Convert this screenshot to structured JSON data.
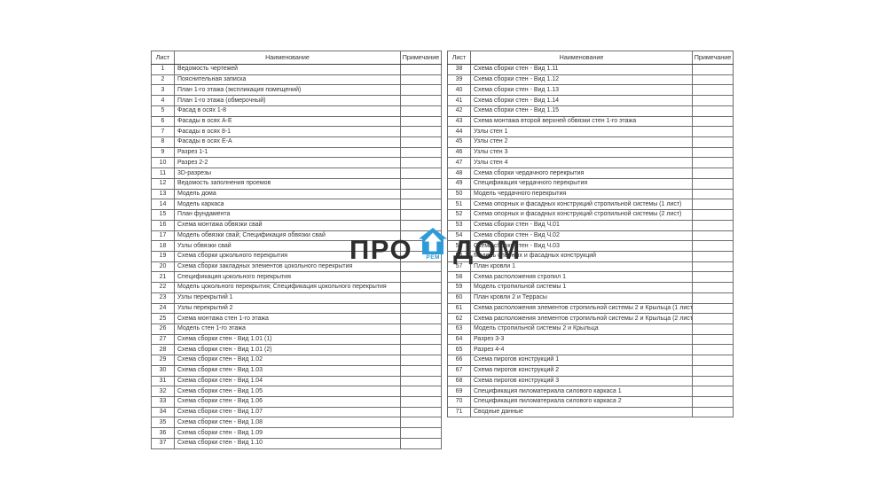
{
  "watermark": {
    "text_left": "ПРО",
    "text_right": "ДОМ",
    "sub_text": "РЕМ",
    "house_color": "#2f9ad8",
    "text_color": "#2e2e2e"
  },
  "tables": [
    {
      "headers": {
        "sheet": "Лист",
        "name": "Наименование",
        "note": "Примечание"
      },
      "rows": [
        {
          "sheet": "1",
          "name": "Ведомость чертежей",
          "note": ""
        },
        {
          "sheet": "2",
          "name": "Пояснительная записка",
          "note": ""
        },
        {
          "sheet": "3",
          "name": "План 1-го этажа (экспликация помещений)",
          "note": ""
        },
        {
          "sheet": "4",
          "name": "План 1-го этажа (обмерочный)",
          "note": ""
        },
        {
          "sheet": "5",
          "name": "Фасад в осях 1-8",
          "note": ""
        },
        {
          "sheet": "6",
          "name": "Фасады в осях А-Е",
          "note": ""
        },
        {
          "sheet": "7",
          "name": "Фасады в осях 8-1",
          "note": ""
        },
        {
          "sheet": "8",
          "name": "Фасады в осях Е-А",
          "note": ""
        },
        {
          "sheet": "9",
          "name": "Разрез 1-1",
          "note": ""
        },
        {
          "sheet": "10",
          "name": "Разрез 2-2",
          "note": ""
        },
        {
          "sheet": "11",
          "name": "3D-разрезы",
          "note": ""
        },
        {
          "sheet": "12",
          "name": "Ведомость заполнения проемов",
          "note": ""
        },
        {
          "sheet": "13",
          "name": "Модель дома",
          "note": ""
        },
        {
          "sheet": "14",
          "name": "Модель каркаса",
          "note": ""
        },
        {
          "sheet": "15",
          "name": "План фундамента",
          "note": ""
        },
        {
          "sheet": "16",
          "name": "Схема монтажа обвязки свай",
          "note": ""
        },
        {
          "sheet": "17",
          "name": "Модель обвязки свай; Спецификация обвязки свай",
          "note": ""
        },
        {
          "sheet": "18",
          "name": "Узлы обвязки свай",
          "note": ""
        },
        {
          "sheet": "19",
          "name": "Схема сборки цокольного перекрытия",
          "note": ""
        },
        {
          "sheet": "20",
          "name": "Схема сборки закладных элементов цокольного перекрытия",
          "note": ""
        },
        {
          "sheet": "21",
          "name": "Спецификация цокольного перекрытия",
          "note": ""
        },
        {
          "sheet": "22",
          "name": "Модель цокольного перекрытия; Спецификация цокольного перекрытия",
          "note": ""
        },
        {
          "sheet": "23",
          "name": "Узлы перекрытий 1",
          "note": ""
        },
        {
          "sheet": "24",
          "name": "Узлы  перекрытий 2",
          "note": ""
        },
        {
          "sheet": "25",
          "name": "Схема монтажа стен 1-го этажа",
          "note": ""
        },
        {
          "sheet": "26",
          "name": "Модель стен 1-го этажа",
          "note": ""
        },
        {
          "sheet": "27",
          "name": "Схема сборки стен - Вид 1.01 (1)",
          "note": ""
        },
        {
          "sheet": "28",
          "name": "Схема сборки стен - Вид 1.01 (2)",
          "note": ""
        },
        {
          "sheet": "29",
          "name": "Схема сборки стен - Вид 1.02",
          "note": ""
        },
        {
          "sheet": "30",
          "name": "Схема сборки стен - Вид 1.03",
          "note": ""
        },
        {
          "sheet": "31",
          "name": "Схема сборки стен - Вид 1.04",
          "note": ""
        },
        {
          "sheet": "32",
          "name": "Схема сборки стен - Вид 1.05",
          "note": ""
        },
        {
          "sheet": "33",
          "name": "Схема сборки стен - Вид 1.06",
          "note": ""
        },
        {
          "sheet": "34",
          "name": "Схема сборки стен - Вид 1.07",
          "note": ""
        },
        {
          "sheet": "35",
          "name": "Схема сборки стен - Вид 1.08",
          "note": ""
        },
        {
          "sheet": "36",
          "name": "Схема сборки стен - Вид 1.09",
          "note": ""
        },
        {
          "sheet": "37",
          "name": "Схема сборки стен - Вид 1.10",
          "note": ""
        }
      ]
    },
    {
      "headers": {
        "sheet": "Лист",
        "name": "Наименование",
        "note": "Примечание"
      },
      "rows": [
        {
          "sheet": "38",
          "name": "Схема сборки стен - Вид 1.11",
          "note": ""
        },
        {
          "sheet": "39",
          "name": "Схема сборки стен - Вид 1.12",
          "note": ""
        },
        {
          "sheet": "40",
          "name": "Схема сборки стен - Вид 1.13",
          "note": ""
        },
        {
          "sheet": "41",
          "name": "Схема сборки стен - Вид 1.14",
          "note": ""
        },
        {
          "sheet": "42",
          "name": "Схема сборки стен - Вид 1.15",
          "note": ""
        },
        {
          "sheet": "43",
          "name": "Схема монтажа второй верхней обвязки стен 1-го этажа",
          "note": ""
        },
        {
          "sheet": "44",
          "name": "Узлы стен 1",
          "note": ""
        },
        {
          "sheet": "45",
          "name": "Узлы стен 2",
          "note": ""
        },
        {
          "sheet": "46",
          "name": "Узлы стен 3",
          "note": ""
        },
        {
          "sheet": "47",
          "name": "Узлы стен 4",
          "note": ""
        },
        {
          "sheet": "48",
          "name": "Схема сборки чердачного перекрытия",
          "note": ""
        },
        {
          "sheet": "49",
          "name": "Спецификация чердачного перекрытия",
          "note": ""
        },
        {
          "sheet": "50",
          "name": "Модель чердачного перекрытия",
          "note": ""
        },
        {
          "sheet": "51",
          "name": "Схема опорных и фасадных конструкций стропильной системы (1 лист)",
          "note": ""
        },
        {
          "sheet": "52",
          "name": "Схема опорных и фасадных конструкций стропильной системы (2 лист)",
          "note": ""
        },
        {
          "sheet": "53",
          "name": "Схема сборки стен - Вид Ч.01",
          "note": ""
        },
        {
          "sheet": "54",
          "name": "Схема сборки стен - Вид Ч.02",
          "note": ""
        },
        {
          "sheet": "55",
          "name": "Схема сборки стен - Вид Ч.03",
          "note": ""
        },
        {
          "sheet": "56",
          "name": "Модель опорных и фасадных конструкций",
          "note": ""
        },
        {
          "sheet": "57",
          "name": "План кровли 1",
          "note": ""
        },
        {
          "sheet": "58",
          "name": "Схема расположения стропил 1",
          "note": ""
        },
        {
          "sheet": "59",
          "name": "Модель стропильной системы 1",
          "note": ""
        },
        {
          "sheet": "60",
          "name": "План кровли 2 и Террасы",
          "note": ""
        },
        {
          "sheet": "61",
          "name": "Схема расположения элементов стропильной системы 2 и Крыльца (1 лист)",
          "note": ""
        },
        {
          "sheet": "62",
          "name": "Схема расположения элементов стропильной системы 2 и Крыльца (2 лист)",
          "note": ""
        },
        {
          "sheet": "63",
          "name": "Модель стропильной системы 2 и Крыльца",
          "note": ""
        },
        {
          "sheet": "64",
          "name": "Разрез 3-3",
          "note": ""
        },
        {
          "sheet": "65",
          "name": "Разрез 4-4",
          "note": ""
        },
        {
          "sheet": "66",
          "name": "Схема пирогов конструкций 1",
          "note": ""
        },
        {
          "sheet": "67",
          "name": "Схема пирогов конструкций 2",
          "note": ""
        },
        {
          "sheet": "68",
          "name": "Схема пирогов конструкций 3",
          "note": ""
        },
        {
          "sheet": "69",
          "name": "Спецификация пиломатериала силового каркаса 1",
          "note": ""
        },
        {
          "sheet": "70",
          "name": "Спецификация пиломатериала силового каркаса 2",
          "note": ""
        },
        {
          "sheet": "71",
          "name": "Сводные данные",
          "note": ""
        }
      ]
    }
  ]
}
